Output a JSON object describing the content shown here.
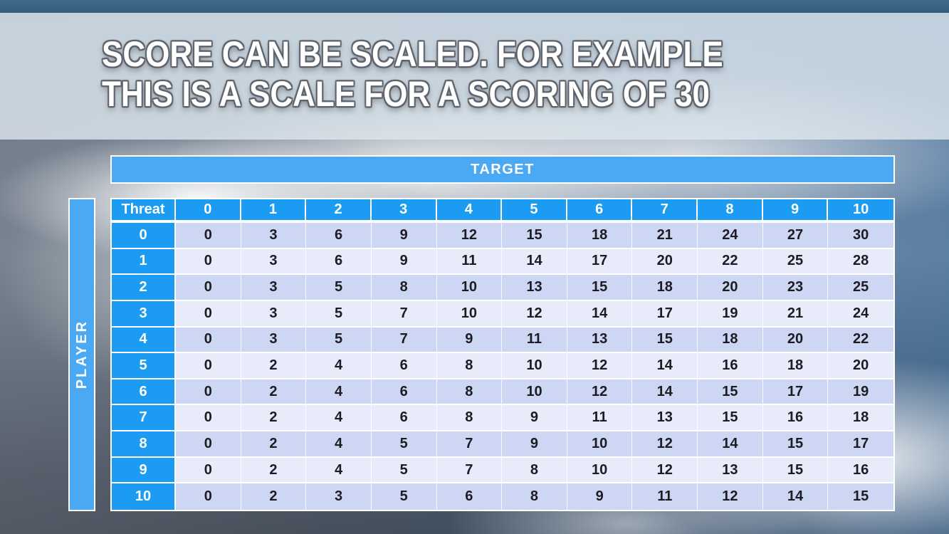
{
  "title": {
    "line1": "SCORE CAN BE SCALED. FOR EXAMPLE",
    "line2": "THIS IS A SCALE FOR A SCORING OF 30"
  },
  "table": {
    "target_label": "TARGET",
    "player_label": "PLAYER",
    "corner_label": "Threat",
    "column_headers": [
      "0",
      "1",
      "2",
      "3",
      "4",
      "5",
      "6",
      "7",
      "8",
      "9",
      "10"
    ],
    "row_headers": [
      "0",
      "1",
      "2",
      "3",
      "4",
      "5",
      "6",
      "7",
      "8",
      "9",
      "10"
    ],
    "rows": [
      [
        0,
        3,
        6,
        9,
        12,
        15,
        18,
        21,
        24,
        27,
        30
      ],
      [
        0,
        3,
        6,
        9,
        11,
        14,
        17,
        20,
        22,
        25,
        28
      ],
      [
        0,
        3,
        5,
        8,
        10,
        13,
        15,
        18,
        20,
        23,
        25
      ],
      [
        0,
        3,
        5,
        7,
        10,
        12,
        14,
        17,
        19,
        21,
        24
      ],
      [
        0,
        3,
        5,
        7,
        9,
        11,
        13,
        15,
        18,
        20,
        22
      ],
      [
        0,
        2,
        4,
        6,
        8,
        10,
        12,
        14,
        16,
        18,
        20
      ],
      [
        0,
        2,
        4,
        6,
        8,
        10,
        12,
        14,
        15,
        17,
        19
      ],
      [
        0,
        2,
        4,
        6,
        8,
        9,
        11,
        13,
        15,
        16,
        18
      ],
      [
        0,
        2,
        4,
        5,
        7,
        9,
        10,
        12,
        14,
        15,
        17
      ],
      [
        0,
        2,
        4,
        5,
        7,
        8,
        10,
        12,
        13,
        15,
        16
      ],
      [
        0,
        2,
        3,
        5,
        6,
        8,
        9,
        11,
        12,
        14,
        15
      ]
    ]
  },
  "colors": {
    "header_azure": "#1B9CF2",
    "bar_blue": "#4BA8F2",
    "row_dark": "#CDD6F2",
    "row_light": "#E7EBFA",
    "top_bar": "#335C7C",
    "title_band": "rgba(223,231,238,0.80)",
    "cell_text": "#1C1C22"
  }
}
